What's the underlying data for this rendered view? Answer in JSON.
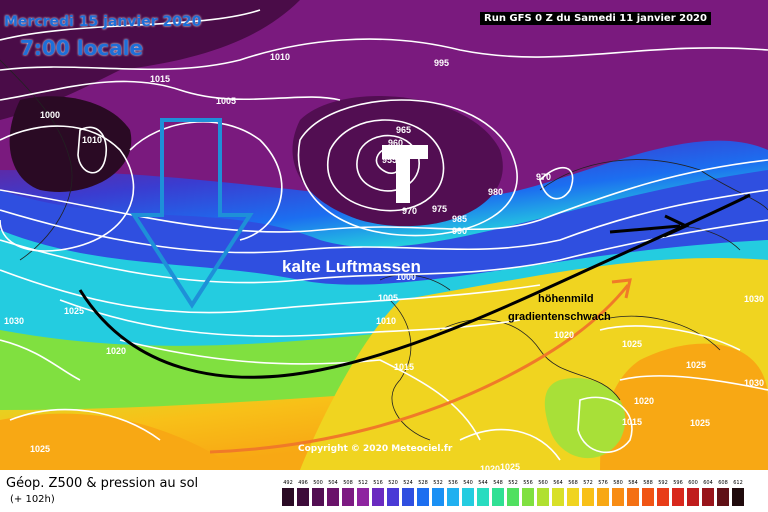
{
  "header": {
    "date": "Mercredi 15 janvier 2020",
    "time": "7:00 locale",
    "run": "Run GFS 0 Z du Samedi 11 janvier 2020"
  },
  "footer": {
    "title": "Géop. Z500 & pression au sol",
    "subtitle": "(+ 102h)"
  },
  "copyright": "Copyright © 2020 Meteociel.fr",
  "annotations": {
    "cold": "kalte Luftmassen",
    "mild1": "höhenmild",
    "mild2": "gradientenschwach",
    "low_marker": "T"
  },
  "isobar_labels": [
    "1015",
    "1010",
    "995",
    "1005",
    "1000",
    "1010",
    "965",
    "960",
    "955",
    "980",
    "970",
    "970",
    "975",
    "985",
    "990",
    "1000",
    "1005",
    "1010",
    "1015",
    "1030",
    "1025",
    "1020",
    "1030",
    "1020",
    "1025",
    "1025",
    "1020",
    "1015",
    "1025",
    "1030",
    "1025",
    "1020",
    "1025"
  ],
  "legend": {
    "labels": [
      "492",
      "496",
      "500",
      "504",
      "508",
      "512",
      "516",
      "520",
      "524",
      "528",
      "532",
      "536",
      "540",
      "544",
      "548",
      "552",
      "556",
      "560",
      "564",
      "568",
      "572",
      "576",
      "580",
      "584",
      "588",
      "592",
      "596",
      "600",
      "604",
      "608",
      "612"
    ],
    "colors": [
      "#2a0a24",
      "#3d0b3a",
      "#520e52",
      "#6a126a",
      "#7c1a82",
      "#8e24a0",
      "#6a2ac0",
      "#4a3ad6",
      "#2f4fe0",
      "#1c6ef0",
      "#1a90f4",
      "#20b0f0",
      "#24cce0",
      "#28dcc0",
      "#30e094",
      "#50e060",
      "#80e040",
      "#b0e030",
      "#d8e028",
      "#f0d420",
      "#f8c018",
      "#f8a814",
      "#f88c14",
      "#f47014",
      "#f05414",
      "#e83c18",
      "#d8281c",
      "#c01c1c",
      "#98141a",
      "#601016",
      "#200a0c"
    ],
    "color_names": [
      "dark-purple",
      "purple",
      "magenta",
      "violet",
      "blue-violet",
      "indigo",
      "blue",
      "medium-blue",
      "cyan",
      "teal",
      "green",
      "lime",
      "yellow",
      "orange",
      "red",
      "dark-red",
      "black"
    ]
  }
}
